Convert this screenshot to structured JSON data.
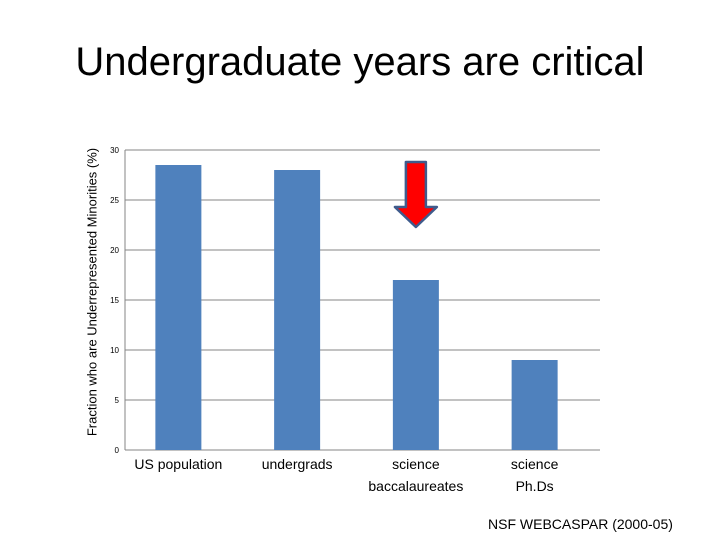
{
  "slide": {
    "title": "Undergraduate years are critical",
    "source_note": "NSF WEBCASPAR (2000-05)"
  },
  "chart_data": {
    "type": "bar",
    "ylabel": "Fraction who are Underrepresented Minorities (%)",
    "ylim": [
      0,
      30
    ],
    "yticks": [
      0,
      5,
      10,
      15,
      20,
      25,
      30
    ],
    "grid": true,
    "categories": [
      "US population",
      "undergrads",
      "science baccalaureates",
      "science Ph.Ds"
    ],
    "category_lines": [
      [
        "US population"
      ],
      [
        "undergrads"
      ],
      [
        "science",
        "baccalaureates"
      ],
      [
        "science",
        "Ph.Ds"
      ]
    ],
    "values": [
      28.5,
      28.0,
      17.0,
      9.0
    ],
    "bar_color": "#4f81bd",
    "annotation": {
      "type": "down-arrow",
      "category": "science baccalaureates",
      "color": "#ff0000",
      "outline": "#3f5b8c"
    }
  }
}
